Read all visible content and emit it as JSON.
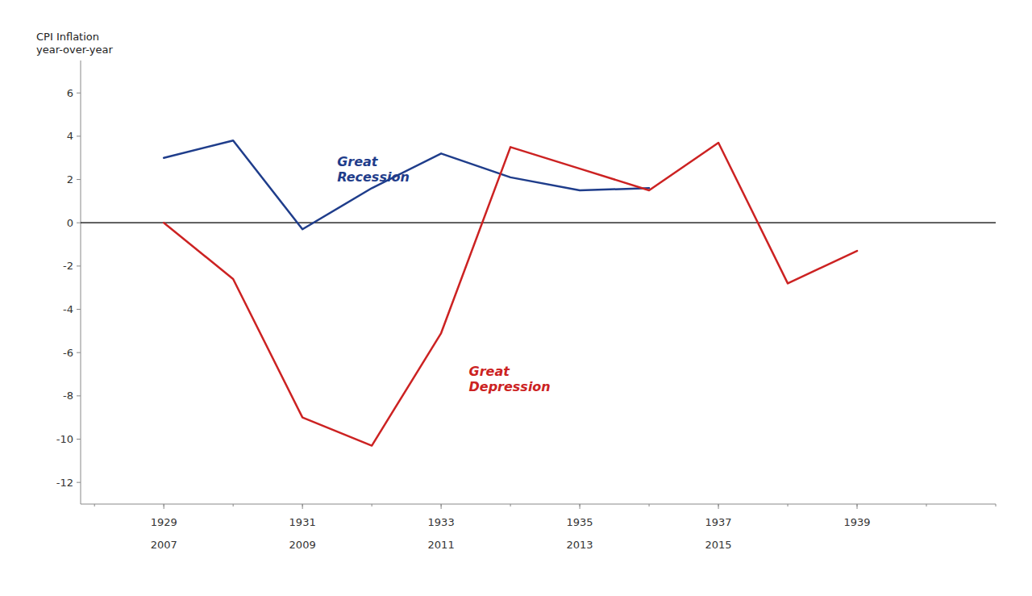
{
  "chart_data": {
    "type": "line",
    "ylabel": "CPI Inflation\nyear-over-year",
    "series": [
      {
        "color": "#1F3D8B",
        "x": [
          1929,
          1930,
          1931,
          1932,
          1933,
          1934,
          1935,
          1936
        ],
        "values": [
          3.0,
          3.8,
          -0.3,
          1.6,
          3.2,
          2.1,
          1.5,
          1.6
        ]
      },
      {
        "color": "#CC2222",
        "x": [
          1929,
          1930,
          1931,
          1932,
          1933,
          1934,
          1935,
          1936,
          1937,
          1938,
          1939
        ],
        "values": [
          0.0,
          -2.6,
          -9.0,
          -10.3,
          -5.1,
          3.5,
          2.5,
          1.5,
          3.7,
          -2.8,
          -1.3
        ]
      }
    ],
    "annotations": [
      {
        "text": "Great\nRecession",
        "x": 1931.5,
        "y": 2.5,
        "color": "#1F3D8B"
      },
      {
        "text": "Great\nDepression",
        "x": 1933.4,
        "y": -7.2,
        "color": "#CC2222"
      }
    ],
    "hlines": [
      {
        "value": 0,
        "color": "#000000"
      }
    ],
    "xlim": [
      1927.8,
      1941.0
    ],
    "xticks": [
      1929,
      1931,
      1933,
      1935,
      1937,
      1939
    ],
    "xticks_minor": [
      1928,
      1929,
      1930,
      1931,
      1932,
      1933,
      1934,
      1935,
      1936,
      1937,
      1938,
      1939,
      1940,
      1941
    ],
    "x2lim": [
      1927.8,
      1941.0
    ],
    "x2ticks": [
      {
        "value": 1929,
        "label": "2007"
      },
      {
        "value": 1931,
        "label": "2009"
      },
      {
        "value": 1933,
        "label": "2011"
      },
      {
        "value": 1935,
        "label": "2013"
      },
      {
        "value": 1937,
        "label": "2015"
      }
    ],
    "ylim": [
      -13.0,
      7.5
    ],
    "yticks": [
      6,
      4,
      2,
      0,
      -2,
      -4,
      -6,
      -8,
      -10,
      -12
    ],
    "grid": false
  }
}
